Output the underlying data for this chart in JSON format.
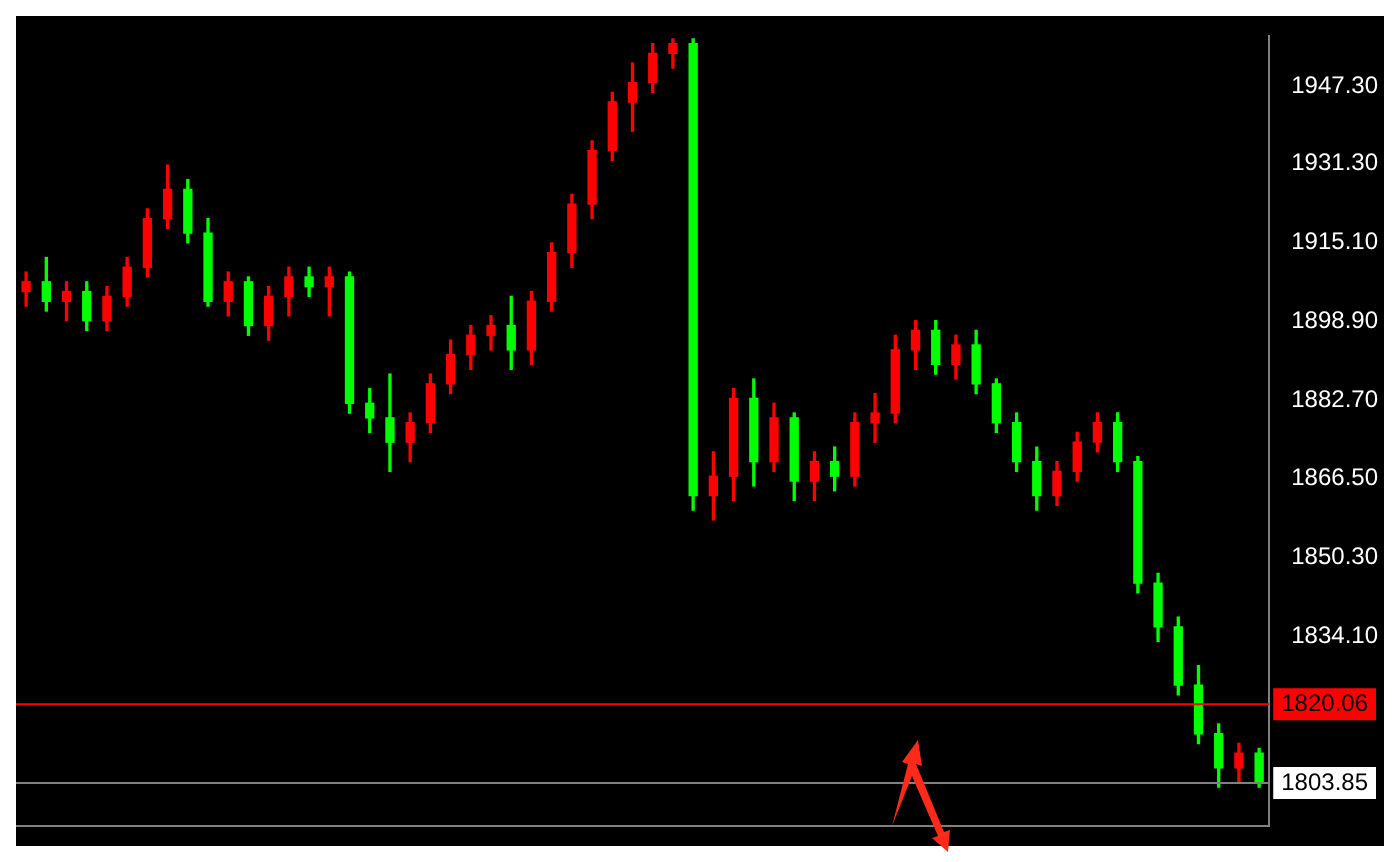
{
  "chart_data": {
    "type": "candlestick",
    "categories": [
      null,
      null,
      null,
      null,
      null,
      null,
      null,
      null,
      null,
      null,
      null,
      null,
      null,
      null,
      null,
      null,
      null,
      null,
      null,
      null,
      null,
      null,
      null,
      null,
      null,
      null,
      null,
      null,
      null,
      null,
      null,
      null,
      null,
      null,
      null,
      null,
      null,
      null,
      null,
      null,
      null,
      null,
      null,
      null,
      null,
      null,
      null,
      null,
      null,
      null,
      null,
      null,
      null,
      null,
      null,
      null,
      null,
      null,
      null,
      null,
      null,
      null
    ],
    "ohlc": [
      [
        1905,
        1909,
        1902,
        1907
      ],
      [
        1907,
        1912,
        1901,
        1903
      ],
      [
        1903,
        1907,
        1899,
        1905
      ],
      [
        1905,
        1907,
        1897,
        1899
      ],
      [
        1899,
        1906,
        1897,
        1904
      ],
      [
        1904,
        1912,
        1902,
        1910
      ],
      [
        1910,
        1922,
        1908,
        1920
      ],
      [
        1920,
        1931,
        1918,
        1926
      ],
      [
        1926,
        1928,
        1915,
        1917
      ],
      [
        1917,
        1920,
        1902,
        1903
      ],
      [
        1903,
        1909,
        1900,
        1907
      ],
      [
        1907,
        1908,
        1896,
        1898
      ],
      [
        1898,
        1906,
        1895,
        1904
      ],
      [
        1904,
        1910,
        1900,
        1908
      ],
      [
        1908,
        1910,
        1904,
        1906
      ],
      [
        1906,
        1910,
        1900,
        1908
      ],
      [
        1908,
        1909,
        1880,
        1882
      ],
      [
        1882,
        1885,
        1876,
        1879
      ],
      [
        1879,
        1888,
        1868,
        1874
      ],
      [
        1874,
        1880,
        1870,
        1878
      ],
      [
        1878,
        1888,
        1876,
        1886
      ],
      [
        1886,
        1895,
        1884,
        1892
      ],
      [
        1892,
        1898,
        1889,
        1896
      ],
      [
        1896,
        1900,
        1893,
        1898
      ],
      [
        1898,
        1904,
        1889,
        1893
      ],
      [
        1893,
        1905,
        1890,
        1903
      ],
      [
        1903,
        1915,
        1901,
        1913
      ],
      [
        1913,
        1925,
        1910,
        1923
      ],
      [
        1923,
        1936,
        1920,
        1934
      ],
      [
        1934,
        1946,
        1932,
        1944
      ],
      [
        1944,
        1952,
        1938,
        1948
      ],
      [
        1948,
        1956,
        1946,
        1954
      ],
      [
        1954,
        1957,
        1951,
        1956
      ],
      [
        1956,
        1957,
        1860,
        1863
      ],
      [
        1863,
        1872,
        1858,
        1867
      ],
      [
        1867,
        1885,
        1862,
        1883
      ],
      [
        1883,
        1887,
        1865,
        1870
      ],
      [
        1870,
        1882,
        1868,
        1879
      ],
      [
        1879,
        1880,
        1862,
        1866
      ],
      [
        1866,
        1872,
        1862,
        1870
      ],
      [
        1870,
        1873,
        1864,
        1867
      ],
      [
        1867,
        1880,
        1865,
        1878
      ],
      [
        1878,
        1884,
        1874,
        1880
      ],
      [
        1880,
        1896,
        1878,
        1893
      ],
      [
        1893,
        1899,
        1889,
        1897
      ],
      [
        1897,
        1899,
        1888,
        1890
      ],
      [
        1890,
        1896,
        1887,
        1894
      ],
      [
        1894,
        1897,
        1884,
        1886
      ],
      [
        1886,
        1887,
        1876,
        1878
      ],
      [
        1878,
        1880,
        1868,
        1870
      ],
      [
        1870,
        1873,
        1860,
        1863
      ],
      [
        1863,
        1870,
        1861,
        1868
      ],
      [
        1868,
        1876,
        1866,
        1874
      ],
      [
        1874,
        1880,
        1872,
        1878
      ],
      [
        1878,
        1880,
        1868,
        1870
      ],
      [
        1870,
        1871,
        1843,
        1845
      ],
      [
        1845,
        1847,
        1833,
        1836
      ],
      [
        1836,
        1838,
        1822,
        1824
      ],
      [
        1824,
        1828,
        1812,
        1814
      ],
      [
        1814,
        1816,
        1803,
        1807
      ],
      [
        1807,
        1812,
        1804,
        1810
      ],
      [
        1810,
        1811,
        1803,
        1804
      ]
    ],
    "colors": [
      "#ff0000",
      "#00ff00",
      "#ff0000",
      "#00ff00",
      "#ff0000",
      "#ff0000",
      "#ff0000",
      "#ff0000",
      "#00ff00",
      "#00ff00",
      "#ff0000",
      "#00ff00",
      "#ff0000",
      "#ff0000",
      "#00ff00",
      "#ff0000",
      "#00ff00",
      "#00ff00",
      "#00ff00",
      "#ff0000",
      "#ff0000",
      "#ff0000",
      "#ff0000",
      "#ff0000",
      "#00ff00",
      "#ff0000",
      "#ff0000",
      "#ff0000",
      "#ff0000",
      "#ff0000",
      "#ff0000",
      "#ff0000",
      "#ff0000",
      "#00ff00",
      "#ff0000",
      "#ff0000",
      "#00ff00",
      "#ff0000",
      "#00ff00",
      "#ff0000",
      "#00ff00",
      "#ff0000",
      "#ff0000",
      "#ff0000",
      "#ff0000",
      "#00ff00",
      "#ff0000",
      "#00ff00",
      "#00ff00",
      "#00ff00",
      "#00ff00",
      "#ff0000",
      "#ff0000",
      "#ff0000",
      "#00ff00",
      "#00ff00",
      "#00ff00",
      "#00ff00",
      "#00ff00",
      "#00ff00",
      "#ff0000",
      "#00ff00"
    ],
    "ylim": [
      1795.1,
      1957.5
    ],
    "yticks": [
      {
        "value": 1947.3,
        "label": "1947.30"
      },
      {
        "value": 1931.3,
        "label": "1931.30"
      },
      {
        "value": 1915.1,
        "label": "1915.10"
      },
      {
        "value": 1898.9,
        "label": "1898.90"
      },
      {
        "value": 1882.7,
        "label": "1882.70"
      },
      {
        "value": 1866.5,
        "label": "1866.50"
      },
      {
        "value": 1850.3,
        "label": "1850.30"
      },
      {
        "value": 1834.1,
        "label": "1834.10"
      }
    ],
    "ref_lines": [
      {
        "axis": "y",
        "value": 1820.06,
        "label": "1820.06",
        "color": "#ff0000"
      },
      {
        "axis": "y",
        "value": 1803.85,
        "label": "1803.85",
        "color": "#808080"
      }
    ],
    "grid": false,
    "tick_labels": "y"
  }
}
